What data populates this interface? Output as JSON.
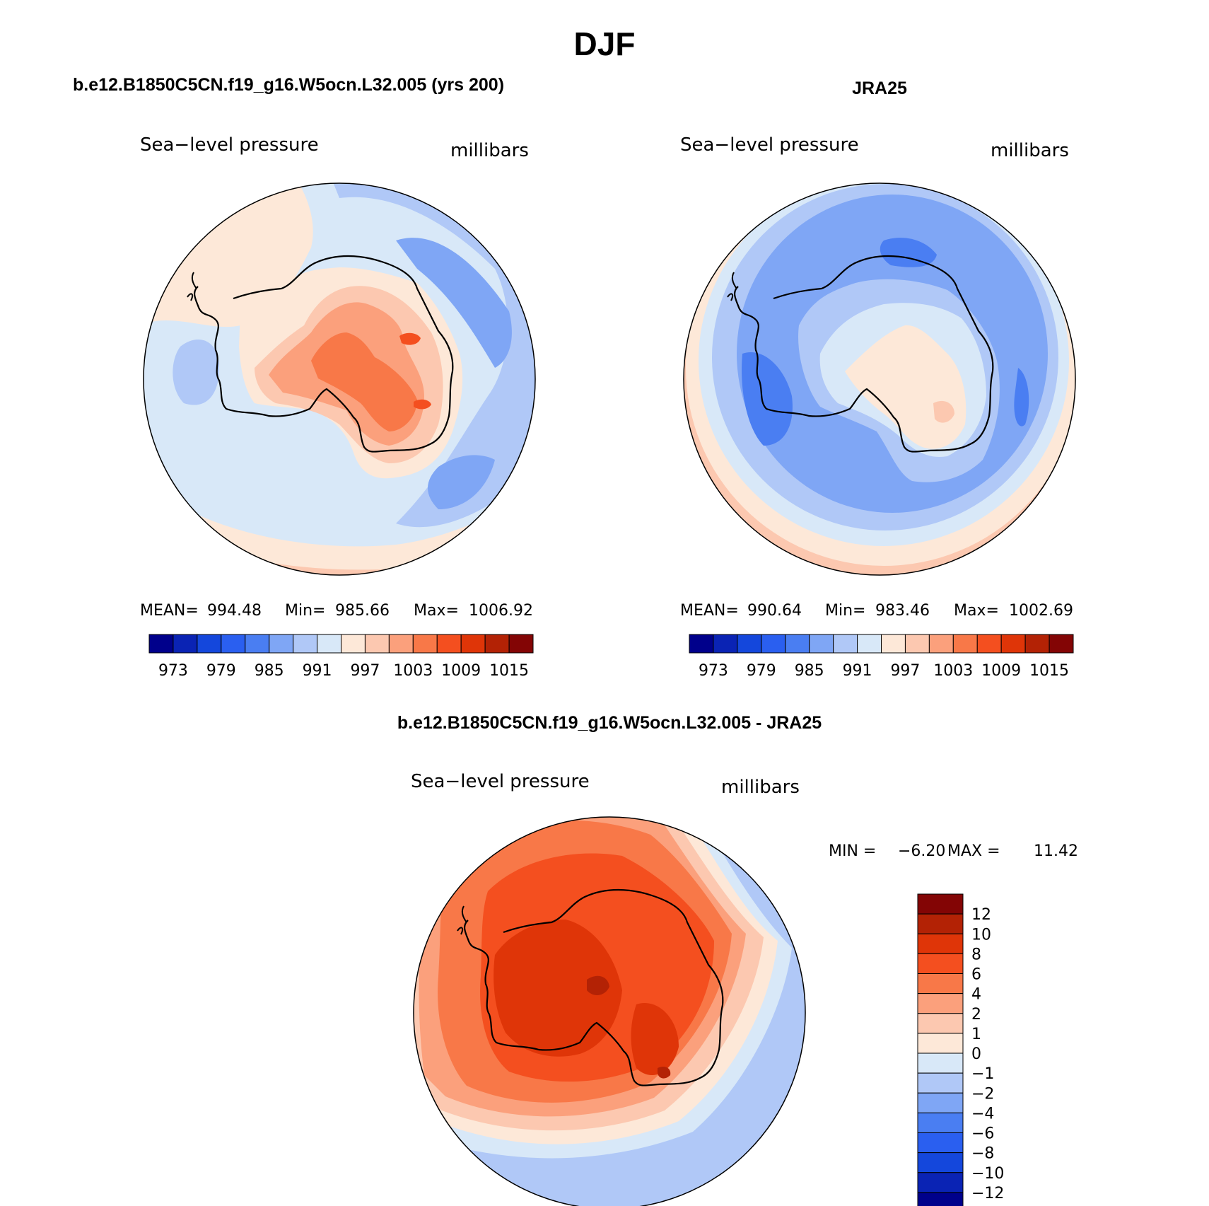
{
  "title": "DJF",
  "panels": [
    {
      "heading": "b.e12.B1850C5CN.f19_g16.W5ocn.L32.005 (yrs 200)",
      "variable": "Sea−level pressure",
      "units": "millibars",
      "stats": {
        "mean_label": "MEAN=",
        "mean": "994.48",
        "min_label": "Min=",
        "min": "985.66",
        "max_label": "Max=",
        "max": "1006.92"
      }
    },
    {
      "heading": "JRA25",
      "variable": "Sea−level pressure",
      "units": "millibars",
      "stats": {
        "mean_label": "MEAN=",
        "mean": "990.64",
        "min_label": "Min=",
        "min": "983.46",
        "max_label": "Max=",
        "max": "1002.69"
      }
    },
    {
      "heading": "b.e12.B1850C5CN.f19_g16.W5ocn.L32.005 - JRA25",
      "variable": "Sea−level pressure",
      "units": "millibars",
      "stats": {
        "min_label": "MIN =",
        "min": "−6.20",
        "max_label": "MAX =",
        "max": "11.42"
      }
    }
  ],
  "abs_colorbar": {
    "colors": [
      "#00008b",
      "#0a23b4",
      "#1447dc",
      "#2a5ff0",
      "#4a7ef2",
      "#7fa6f5",
      "#b0c8f7",
      "#d8e8f8",
      "#fde8d8",
      "#fcc8b0",
      "#fba07c",
      "#f87848",
      "#f44f1f",
      "#df3508",
      "#b32205",
      "#830505"
    ],
    "tick_labels": [
      "973",
      "979",
      "985",
      "991",
      "997",
      "1003",
      "1009",
      "1015"
    ]
  },
  "diff_colorbar": {
    "colors": [
      "#830505",
      "#b32205",
      "#df3508",
      "#f44f1f",
      "#f87848",
      "#fba07c",
      "#fcc8b0",
      "#fde8d8",
      "#d8e8f8",
      "#b0c8f7",
      "#7fa6f5",
      "#4a7ef2",
      "#2a5ff0",
      "#1447dc",
      "#0a23b4",
      "#00008b"
    ],
    "tick_labels": [
      "12",
      "10",
      "8",
      "6",
      "4",
      "2",
      "1",
      "0",
      "−1",
      "−2",
      "−4",
      "−6",
      "−8",
      "−10",
      "−12"
    ]
  }
}
